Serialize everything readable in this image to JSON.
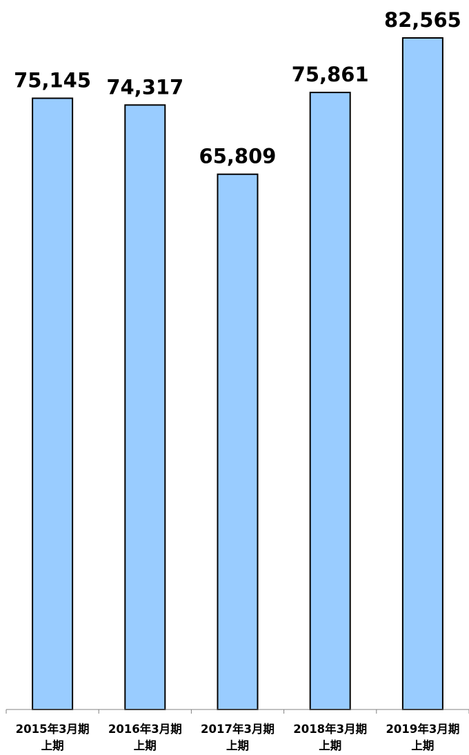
{
  "chart_data": {
    "type": "bar",
    "categories": [
      [
        "2015年3月期",
        "上期"
      ],
      [
        "2016年3月期",
        "上期"
      ],
      [
        "2017年3月期",
        "上期"
      ],
      [
        "2018年3月期",
        "上期"
      ],
      [
        "2019年3月期",
        "上期"
      ]
    ],
    "values": [
      75145,
      74317,
      65809,
      75861,
      82565
    ],
    "value_labels": [
      "75,145",
      "74,317",
      "65,809",
      "75,861",
      "82,565"
    ],
    "title": "",
    "xlabel": "",
    "ylabel": "",
    "ylim": [
      0,
      82565
    ],
    "grid": false,
    "legend": "none",
    "bar_color": "#99CCFF",
    "bar_edge_color": "#000000"
  }
}
